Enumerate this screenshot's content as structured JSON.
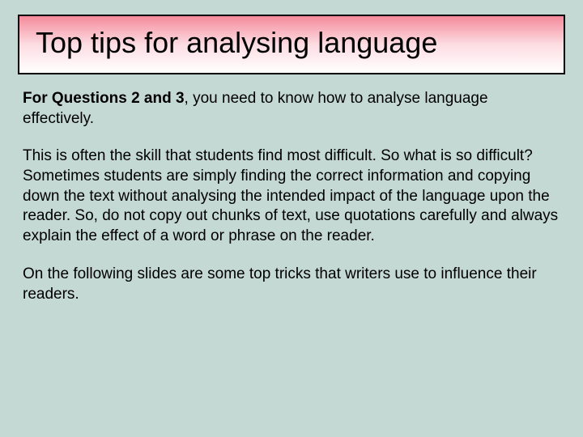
{
  "slide": {
    "title": "Top tips for analysing language",
    "title_box": {
      "gradient_top": "#f58a9a",
      "gradient_mid": "#fcdce2",
      "gradient_bottom": "#ffffff",
      "border_color": "#000000",
      "title_fontsize": 36,
      "font_family": "Trebuchet MS"
    },
    "background_color": "#c4d9d4",
    "body_fontsize": 19,
    "body_font_family": "Verdana",
    "p1_bold": "For Questions 2 and 3",
    "p1_rest": ", you need to know how to analyse language effectively.",
    "p2": "This is often the skill that students find most difficult.  So what is so difficult? Sometimes students are simply finding the correct information and copying down the text without analysing the intended impact of the language upon the reader.  So, do not copy out chunks of text, use quotations carefully and always explain the effect of a word or phrase on the reader.",
    "p3": "On the following slides are some top tricks that writers use to influence their readers."
  }
}
